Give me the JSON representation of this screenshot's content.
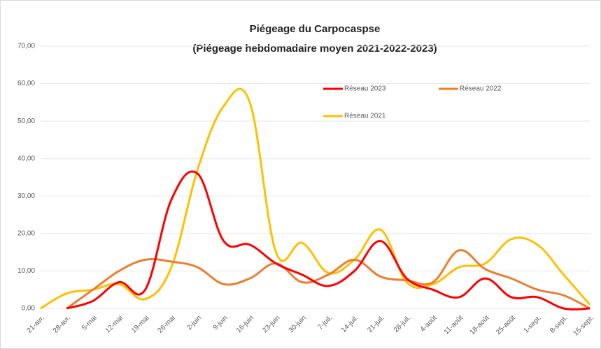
{
  "chart_data": {
    "type": "line",
    "title": "Piégeage du Carpocaspse",
    "subtitle": "(Piégeage hebdomadaire moyen 2021-2022-2023)",
    "categories": [
      "21-avr.",
      "28-avr.",
      "5-mai",
      "12-mai",
      "19-mai",
      "26-mai",
      "2-juin",
      "9-juin",
      "16-juin",
      "23-juin",
      "30-juin",
      "7-juil.",
      "14-juil.",
      "21-juil.",
      "28-juil.",
      "4-août",
      "11-août",
      "18-août",
      "25-août",
      "1-sept.",
      "8-sept.",
      "15-sept."
    ],
    "series": [
      {
        "name": "Réseau 2023",
        "color": "#ff0000",
        "values": [
          null,
          0,
          2,
          7,
          5,
          29,
          36,
          18,
          17,
          12,
          9,
          6,
          10,
          18,
          8,
          5,
          3,
          8,
          3,
          3,
          0,
          0
        ]
      },
      {
        "name": "Réseau 2022",
        "color": "#ed7d31",
        "values": [
          null,
          0,
          5,
          10,
          13,
          12.5,
          11,
          6.5,
          8,
          12,
          7,
          9,
          13,
          8.5,
          7.5,
          7,
          15.5,
          10.5,
          8,
          5,
          3.5,
          0
        ]
      },
      {
        "name": "Réseau 2021",
        "color": "#ffc000",
        "values": [
          0,
          4,
          5,
          6.5,
          2.5,
          11,
          37,
          54,
          55,
          15,
          17.5,
          9.5,
          13,
          21,
          7,
          6.5,
          11,
          12,
          18.5,
          17,
          9,
          1
        ]
      }
    ],
    "ylim": [
      0,
      70
    ],
    "yticks": [
      {
        "value": 0,
        "label": "0,00"
      },
      {
        "value": 10,
        "label": "10,00"
      },
      {
        "value": 20,
        "label": "20,00"
      },
      {
        "value": 30,
        "label": "30,00"
      },
      {
        "value": 40,
        "label": "40,00"
      },
      {
        "value": 50,
        "label": "50,00"
      },
      {
        "value": 60,
        "label": "60,00"
      },
      {
        "value": 70,
        "label": "70,00"
      }
    ],
    "grid": true
  }
}
